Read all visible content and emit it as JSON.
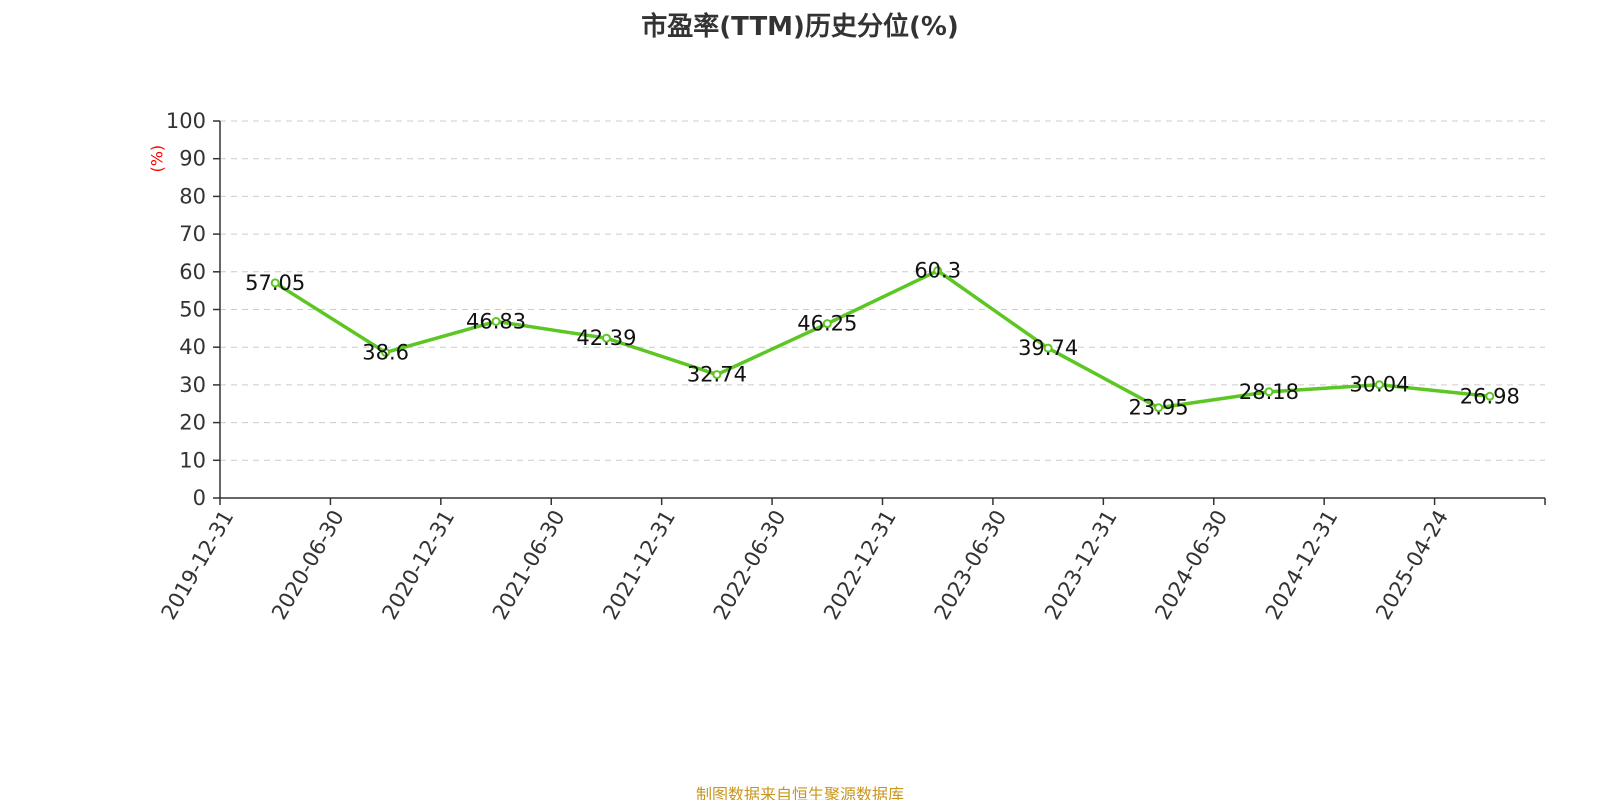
{
  "title": "市盈率(TTM)历史分位(%)",
  "source": "制图数据来自恒生聚源数据库",
  "colors": {
    "line": "#5cc623",
    "axis": "#333333",
    "grid": "#cccccc",
    "ylabel": "#ff0000",
    "title": "#333333",
    "source": "#c9961f"
  },
  "chart_data": {
    "type": "line",
    "title": "市盈率(TTM)历史分位(%)",
    "xlabel": "",
    "ylabel": "(%)",
    "ylim": [
      0,
      100
    ],
    "yticks": [
      0,
      10,
      20,
      30,
      40,
      50,
      60,
      70,
      80,
      90,
      100
    ],
    "grid": true,
    "legend": "none",
    "categories": [
      "2019-12-31",
      "2020-06-30",
      "2020-12-31",
      "2021-06-30",
      "2021-12-31",
      "2022-06-30",
      "2022-12-31",
      "2023-06-30",
      "2023-12-31",
      "2024-06-30",
      "2024-12-31",
      "2025-04-24"
    ],
    "series": [
      {
        "values": [
          57.05,
          38.6,
          46.83,
          42.39,
          32.74,
          46.25,
          60.3,
          39.74,
          23.95,
          28.18,
          30.04,
          26.98
        ]
      }
    ],
    "data_labels": [
      "57.05",
      "38.6",
      "46.83",
      "42.39",
      "32.74",
      "46.25",
      "60.3",
      "39.74",
      "23.95",
      "28.18",
      "30.04",
      "26.98"
    ]
  }
}
